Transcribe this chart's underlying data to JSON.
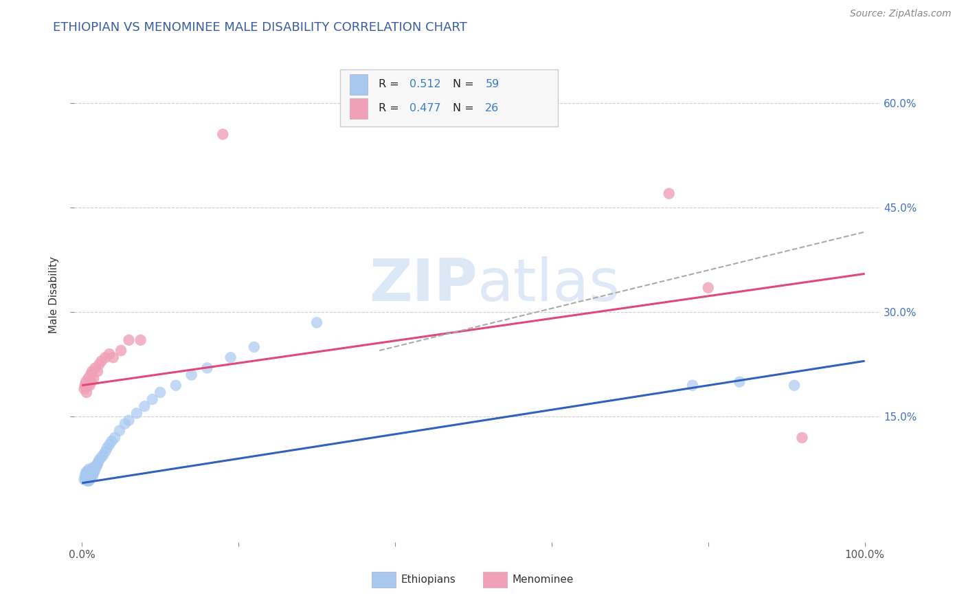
{
  "title": "ETHIOPIAN VS MENOMINEE MALE DISABILITY CORRELATION CHART",
  "source_text": "Source: ZipAtlas.com",
  "ylabel": "Male Disability",
  "xlim": [
    -0.01,
    1.02
  ],
  "ylim": [
    -0.03,
    0.68
  ],
  "x_ticks": [
    0.0,
    0.2,
    0.4,
    0.6,
    0.8,
    1.0
  ],
  "x_tick_labels": [
    "0.0%",
    "",
    "",
    "",
    "",
    "100.0%"
  ],
  "y_ticks": [
    0.15,
    0.3,
    0.45,
    0.6
  ],
  "y_tick_labels": [
    "15.0%",
    "30.0%",
    "45.0%",
    "60.0%"
  ],
  "blue_color": "#a8c8f0",
  "pink_color": "#f0a0b8",
  "blue_line_color": "#3060c0",
  "pink_line_color": "#e04878",
  "dash_line_color": "#aaaaaa",
  "grid_color": "#c8c8c8",
  "title_color": "#3a5fa0",
  "source_color": "#888888",
  "watermark_text": "ZIPatlas",
  "watermark_color": "#dce8f5",
  "eth_blue_r": "0.512",
  "eth_blue_n": "59",
  "men_pink_r": "0.477",
  "men_pink_n": "26",
  "eth_x": [
    0.003,
    0.004,
    0.005,
    0.005,
    0.006,
    0.006,
    0.007,
    0.007,
    0.007,
    0.008,
    0.008,
    0.008,
    0.009,
    0.009,
    0.009,
    0.009,
    0.01,
    0.01,
    0.01,
    0.011,
    0.011,
    0.012,
    0.012,
    0.013,
    0.013,
    0.014,
    0.014,
    0.015,
    0.015,
    0.016,
    0.017,
    0.018,
    0.019,
    0.02,
    0.021,
    0.022,
    0.025,
    0.027,
    0.03,
    0.032,
    0.035,
    0.038,
    0.042,
    0.048,
    0.055,
    0.06,
    0.07,
    0.08,
    0.09,
    0.1,
    0.12,
    0.14,
    0.16,
    0.19,
    0.22,
    0.3,
    0.78,
    0.84,
    0.91
  ],
  "eth_y": [
    0.06,
    0.065,
    0.06,
    0.07,
    0.062,
    0.068,
    0.058,
    0.065,
    0.072,
    0.06,
    0.065,
    0.07,
    0.058,
    0.062,
    0.068,
    0.075,
    0.06,
    0.065,
    0.07,
    0.062,
    0.068,
    0.065,
    0.072,
    0.068,
    0.075,
    0.065,
    0.072,
    0.07,
    0.078,
    0.072,
    0.075,
    0.078,
    0.08,
    0.082,
    0.085,
    0.088,
    0.092,
    0.095,
    0.1,
    0.105,
    0.11,
    0.115,
    0.12,
    0.13,
    0.14,
    0.145,
    0.155,
    0.165,
    0.175,
    0.185,
    0.195,
    0.21,
    0.22,
    0.235,
    0.25,
    0.285,
    0.195,
    0.2,
    0.195
  ],
  "men_x": [
    0.003,
    0.004,
    0.005,
    0.006,
    0.007,
    0.008,
    0.009,
    0.01,
    0.011,
    0.012,
    0.013,
    0.015,
    0.017,
    0.02,
    0.022,
    0.025,
    0.03,
    0.035,
    0.04,
    0.05,
    0.06,
    0.075,
    0.18,
    0.75,
    0.8,
    0.92
  ],
  "men_y": [
    0.19,
    0.195,
    0.2,
    0.185,
    0.195,
    0.205,
    0.2,
    0.195,
    0.21,
    0.2,
    0.215,
    0.205,
    0.22,
    0.215,
    0.225,
    0.23,
    0.235,
    0.24,
    0.235,
    0.245,
    0.26,
    0.26,
    0.555,
    0.47,
    0.335,
    0.12
  ],
  "eth_line_x0": 0.0,
  "eth_line_x1": 1.0,
  "eth_line_y0": 0.055,
  "eth_line_y1": 0.23,
  "men_line_x0": 0.0,
  "men_line_x1": 1.0,
  "men_line_y0": 0.195,
  "men_line_y1": 0.355,
  "dash_line_x0": 0.38,
  "dash_line_x1": 1.0,
  "dash_line_y0": 0.245,
  "dash_line_y1": 0.415
}
